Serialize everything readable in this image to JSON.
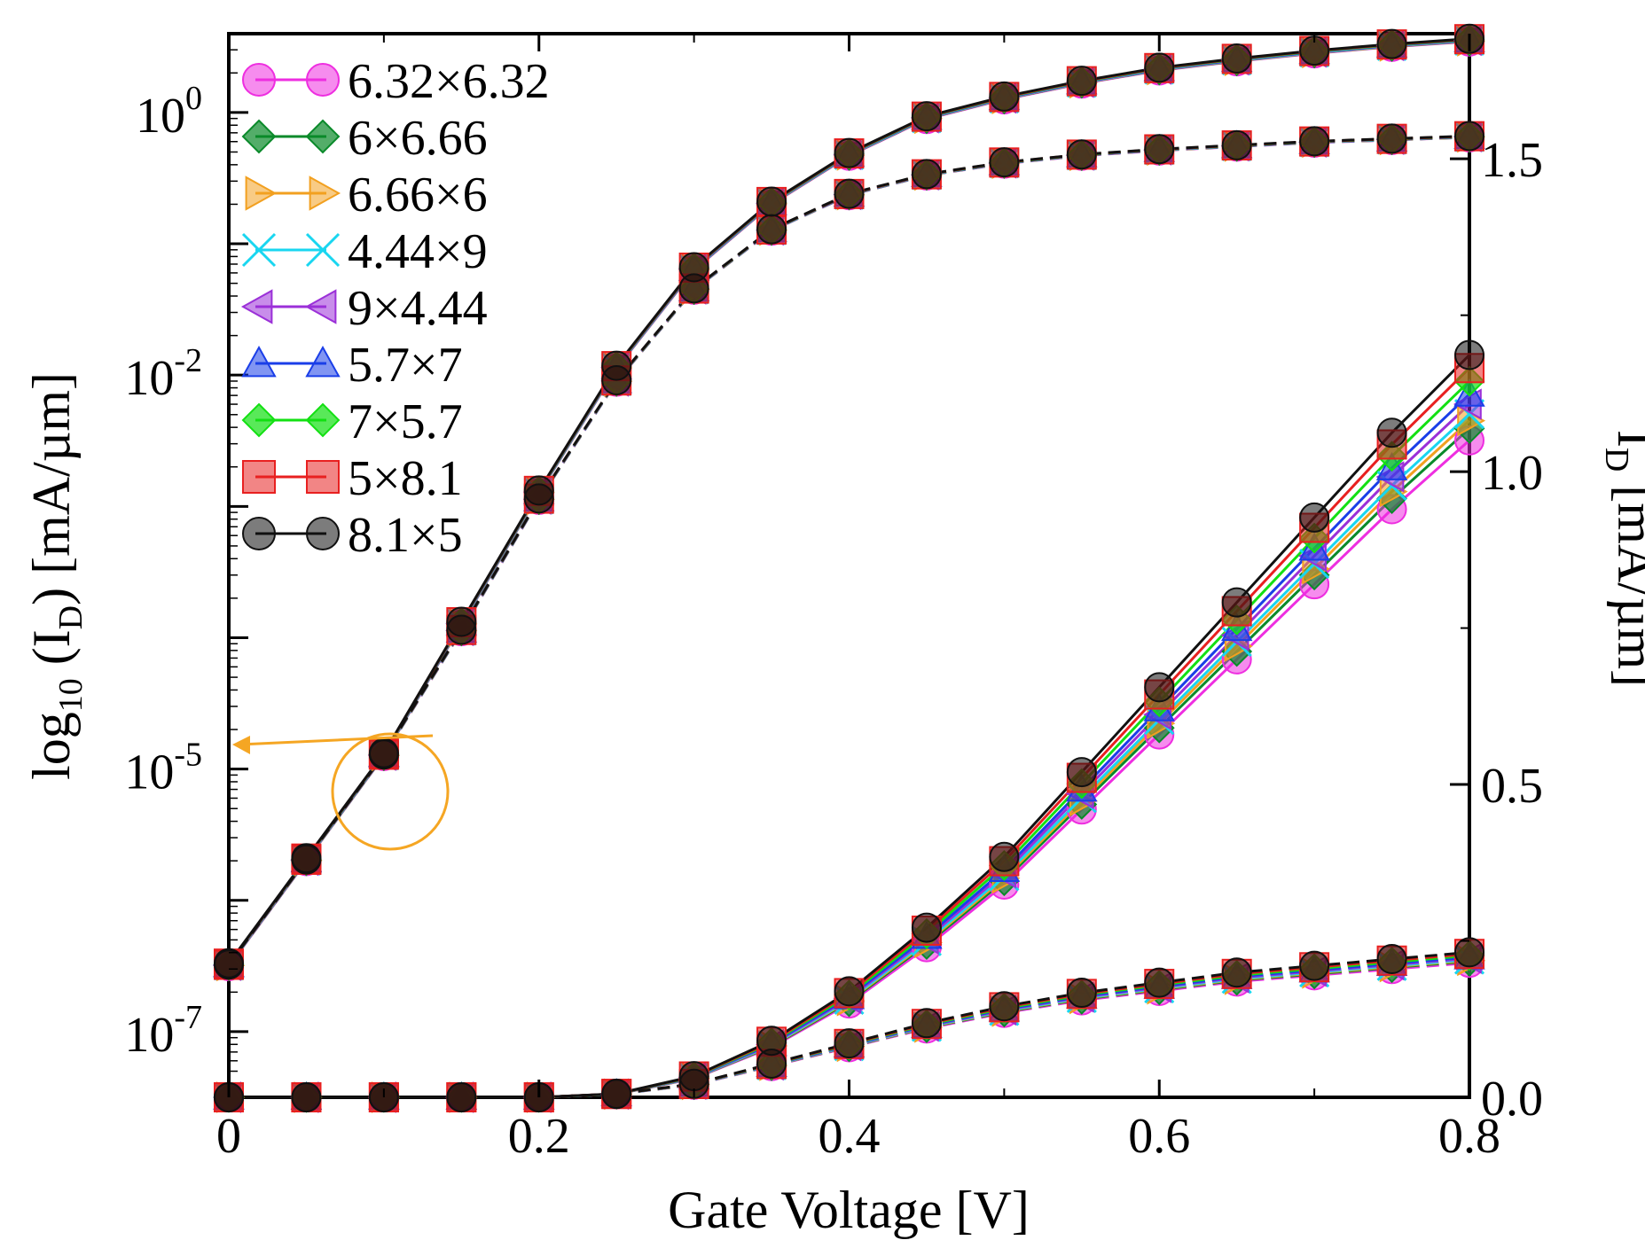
{
  "chart_data": {
    "type": "line",
    "xlabel": "Gate Voltage [V]",
    "ylabel_left": "log10 (ID) [mA/µm]",
    "ylabel_right": "ID [mA/µm]",
    "xlim": [
      0,
      0.8
    ],
    "ylim_left_log10": [
      -7.5,
      0.6
    ],
    "ylim_right": [
      0,
      1.7
    ],
    "x_ticks": [
      "0",
      "0.2",
      "0.4",
      "0.6",
      "0.8"
    ],
    "y_left_ticks": [
      {
        "base": "10",
        "exp": "0",
        "value": 0
      },
      {
        "base": "10",
        "exp": "-2",
        "value": -2
      },
      {
        "base": "10",
        "exp": "-5",
        "value": -5
      },
      {
        "base": "10",
        "exp": "-7",
        "value": -7
      }
    ],
    "y_right_ticks": [
      "0.0",
      "0.5",
      "1.0",
      "1.5"
    ],
    "x": [
      0,
      0.05,
      0.1,
      0.15,
      0.2,
      0.25,
      0.3,
      0.35,
      0.4,
      0.45,
      0.5,
      0.55,
      0.6,
      0.65,
      0.7,
      0.75,
      0.8
    ],
    "reference_curves": {
      "log_vdd_high": [
        -6.5,
        -5.7,
        -4.9,
        -3.9,
        -2.9,
        -1.95,
        -1.2,
        -0.7,
        -0.33,
        -0.05,
        0.1,
        0.22,
        0.32,
        0.39,
        0.45,
        0.5,
        0.54
      ],
      "log_vdd_low": [
        -6.5,
        -5.7,
        -4.9,
        -3.95,
        -2.95,
        -2.05,
        -1.35,
        -0.9,
        -0.63,
        -0.48,
        -0.39,
        -0.33,
        -0.29,
        -0.26,
        -0.23,
        -0.21,
        -0.19
      ],
      "lin_vdd_high": [
        0,
        0,
        0,
        0,
        0,
        0.005,
        0.03,
        0.08,
        0.15,
        0.24,
        0.34,
        0.46,
        0.58,
        0.7,
        0.82,
        0.94,
        1.05
      ],
      "lin_vdd_low": [
        0,
        0,
        0,
        0,
        0,
        0.005,
        0.02,
        0.05,
        0.08,
        0.11,
        0.135,
        0.155,
        0.17,
        0.185,
        0.195,
        0.205,
        0.215
      ]
    },
    "series": [
      {
        "name": "6.32×6.32",
        "color": "#ee2ee0",
        "marker": "circle",
        "scale": 1.0
      },
      {
        "name": "6×6.66",
        "color": "#0a8a2a",
        "marker": "diamond",
        "scale": 1.018
      },
      {
        "name": "6.66×6",
        "color": "#f2a020",
        "marker": "triangle-right",
        "scale": 1.03
      },
      {
        "name": "4.44×9",
        "color": "#19d6f0",
        "marker": "x",
        "scale": 1.04
      },
      {
        "name": "9×4.44",
        "color": "#9b30d8",
        "marker": "triangle-left",
        "scale": 1.055
      },
      {
        "name": "5.7×7",
        "color": "#1a3ee8",
        "marker": "triangle-up",
        "scale": 1.07
      },
      {
        "name": "7×5.7",
        "color": "#13e013",
        "marker": "diamond",
        "scale": 1.09
      },
      {
        "name": "5×8.1",
        "color": "#e82020",
        "marker": "square",
        "scale": 1.11
      },
      {
        "name": "8.1×5",
        "color": "#111111",
        "marker": "circle",
        "scale": 1.13
      }
    ],
    "annotation": "orange circle around 0.1 V points with arrow pointing to left axis"
  },
  "colors": {
    "annotation": "#f5a623",
    "axis": "#000000"
  }
}
